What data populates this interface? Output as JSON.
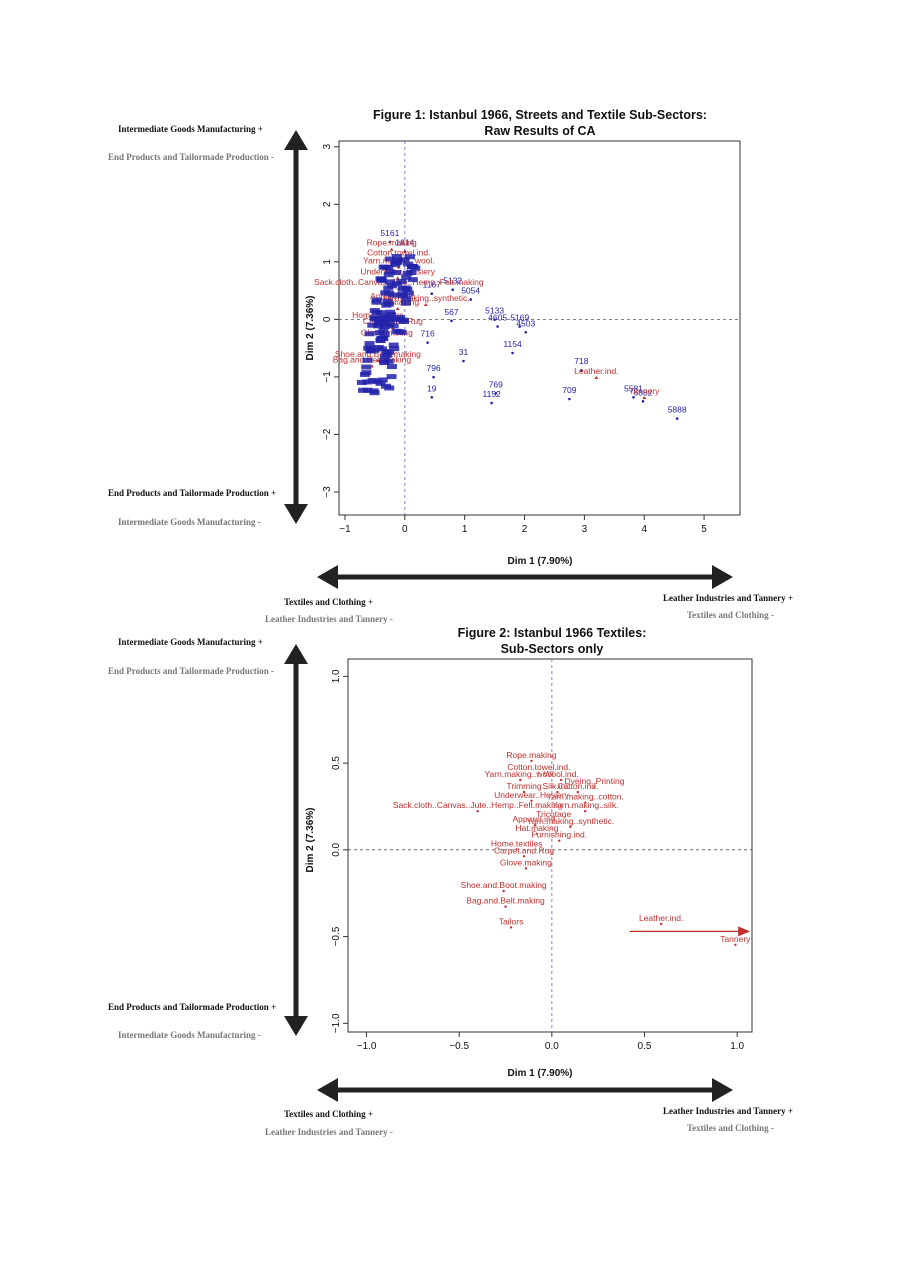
{
  "labels": {
    "intermediate": "Intermediate Goods Manufacturing",
    "end_products": "End Products and Tailormade Production",
    "textiles": "Textiles and Clothing",
    "leather": "Leather Industries and Tannery",
    "plus": "+",
    "minus": "-"
  },
  "colors": {
    "label_red": "#c0302f",
    "point_blue": "#2222aa",
    "axis_dash": "#7b6fc9",
    "arrow": "#222222",
    "label_grey": "#777777"
  },
  "chart_data": [
    {
      "type": "scatter",
      "title_lines": [
        "Figure 1: Istanbul 1966, Streets and Textile Sub-Sectors:",
        "Raw Results of CA"
      ],
      "xlabel": "Dim 1 (7.90%)",
      "ylabel": "Dim 2 (7.36%)",
      "xlim": [
        -1.1,
        5.6
      ],
      "ylim": [
        -3.4,
        3.1
      ],
      "xticks": [
        -1,
        0,
        1,
        2,
        3,
        4,
        5
      ],
      "yticks": [
        3,
        2,
        1,
        0,
        -1,
        -2,
        -3
      ],
      "xtick_labels": [
        "−1",
        "0",
        "1",
        "2",
        "3",
        "4",
        "5"
      ],
      "ytick_labels": [
        "3",
        "2",
        "1",
        "0",
        "−1",
        "−2",
        "−3"
      ],
      "street_points": [
        {
          "label": "5161",
          "x": -0.25,
          "y": 1.45
        },
        {
          "label": "1814",
          "x": 0.0,
          "y": 1.28
        },
        {
          "label": "1167",
          "x": 0.45,
          "y": 0.55
        },
        {
          "label": "5054",
          "x": 1.1,
          "y": 0.45
        },
        {
          "label": "5132",
          "x": 0.8,
          "y": 0.62
        },
        {
          "label": "567",
          "x": 0.78,
          "y": 0.08
        },
        {
          "label": "5133",
          "x": 1.5,
          "y": 0.1
        },
        {
          "label": "4605",
          "x": 1.55,
          "y": -0.02
        },
        {
          "label": "5169",
          "x": 1.92,
          "y": -0.02
        },
        {
          "label": "4503",
          "x": 2.02,
          "y": -0.12
        },
        {
          "label": "716",
          "x": 0.38,
          "y": -0.3
        },
        {
          "label": "1154",
          "x": 1.8,
          "y": -0.48
        },
        {
          "label": "31",
          "x": 0.98,
          "y": -0.62
        },
        {
          "label": "796",
          "x": 0.48,
          "y": -0.9
        },
        {
          "label": "769",
          "x": 1.52,
          "y": -1.18
        },
        {
          "label": "19",
          "x": 0.45,
          "y": -1.25
        },
        {
          "label": "1152",
          "x": 1.45,
          "y": -1.35
        },
        {
          "label": "718",
          "x": 2.95,
          "y": -0.78
        },
        {
          "label": "709",
          "x": 2.75,
          "y": -1.28
        },
        {
          "label": "5581",
          "x": 3.82,
          "y": -1.25
        },
        {
          "label": "5882",
          "x": 3.98,
          "y": -1.32
        },
        {
          "label": "5888",
          "x": 4.55,
          "y": -1.62
        }
      ],
      "sector_labels": [
        {
          "label": "Rope.making",
          "x": -0.22,
          "y": 1.28
        },
        {
          "label": "Cotton.towel.ind.",
          "x": -0.1,
          "y": 1.11
        },
        {
          "label": "Yarn.making..wool.",
          "x": -0.1,
          "y": 0.97
        },
        {
          "label": "Underwear..Hosiery",
          "x": -0.12,
          "y": 0.78
        },
        {
          "label": "Sack.cloth..Canvas..Jute..Hemp..Felt.making",
          "x": -0.1,
          "y": 0.6
        },
        {
          "label": "Yarn.making..synthetic.",
          "x": 0.35,
          "y": 0.32
        },
        {
          "label": "Apparel.ind.",
          "x": -0.2,
          "y": 0.35
        },
        {
          "label": "Hat.making",
          "x": -0.12,
          "y": 0.25
        },
        {
          "label": "Home.textiles",
          "x": -0.45,
          "y": 0.02
        },
        {
          "label": "Carpet.and.Rug",
          "x": -0.2,
          "y": -0.08
        },
        {
          "label": "Glove.making",
          "x": -0.3,
          "y": -0.28
        },
        {
          "label": "Shoe.and.Boot.making",
          "x": -0.45,
          "y": -0.65
        },
        {
          "label": "Bag.and.Belt.making",
          "x": -0.55,
          "y": -0.75
        },
        {
          "label": "Leather.ind.",
          "x": 3.2,
          "y": -0.95
        },
        {
          "label": "Tannery",
          "x": 4.0,
          "y": -1.3
        }
      ]
    },
    {
      "type": "scatter",
      "title_lines": [
        "Figure 2: Istanbul 1966 Textiles:",
        "Sub-Sectors only"
      ],
      "xlabel": "Dim 1 (7.90%)",
      "ylabel": "Dim 2 (7.36%)",
      "xlim": [
        -1.1,
        1.08
      ],
      "ylim": [
        -1.05,
        1.1
      ],
      "xticks": [
        -1.0,
        -0.5,
        0.0,
        0.5,
        1.0
      ],
      "yticks": [
        1.0,
        0.5,
        0.0,
        -0.5,
        -1.0
      ],
      "xtick_labels": [
        "−1.0",
        "−0.5",
        "0.0",
        "0.5",
        "1.0"
      ],
      "ytick_labels": [
        "1.0",
        "0.5",
        "0.0",
        "−0.5",
        "−1.0"
      ],
      "sector_points": [
        {
          "label": "Rope.making",
          "x": -0.11,
          "y": 0.53
        },
        {
          "label": "Cotton.towel.ind.",
          "x": -0.07,
          "y": 0.46
        },
        {
          "label": "Yarn.making..wool.",
          "x": -0.17,
          "y": 0.42
        },
        {
          "label": "Wool.ind.",
          "x": 0.05,
          "y": 0.42
        },
        {
          "label": "Dyeing..Printing",
          "x": 0.23,
          "y": 0.38
        },
        {
          "label": "Trimming",
          "x": -0.15,
          "y": 0.35
        },
        {
          "label": "Silk.ind.",
          "x": 0.03,
          "y": 0.35
        },
        {
          "label": "Cotton.ind.",
          "x": 0.14,
          "y": 0.35
        },
        {
          "label": "Underwear..Hosiery",
          "x": -0.11,
          "y": 0.3
        },
        {
          "label": "Yarn.making..cotton.",
          "x": 0.18,
          "y": 0.29
        },
        {
          "label": "Sack.cloth..Canvas..Jute..Hemp..Felt.making",
          "x": -0.4,
          "y": 0.24
        },
        {
          "label": "Yarn.making..silk.",
          "x": 0.18,
          "y": 0.24
        },
        {
          "label": "Tricotage",
          "x": 0.01,
          "y": 0.19
        },
        {
          "label": "Apparel.ind.",
          "x": -0.09,
          "y": 0.16
        },
        {
          "label": "Yarn.making..synthetic.",
          "x": 0.1,
          "y": 0.15
        },
        {
          "label": "Hat.making",
          "x": -0.08,
          "y": 0.11
        },
        {
          "label": "Furnishing.ind.",
          "x": 0.04,
          "y": 0.07
        },
        {
          "label": "Home.textiles",
          "x": -0.19,
          "y": 0.02
        },
        {
          "label": "Carpet.and.Rug",
          "x": -0.15,
          "y": -0.02
        },
        {
          "label": "Glove.making",
          "x": -0.14,
          "y": -0.09
        },
        {
          "label": "Shoe.and.Boot.making",
          "x": -0.26,
          "y": -0.22
        },
        {
          "label": "Bag.and.Belt.making",
          "x": -0.25,
          "y": -0.31
        },
        {
          "label": "Tailors",
          "x": -0.22,
          "y": -0.43
        },
        {
          "label": "Leather.ind.",
          "x": 0.59,
          "y": -0.41
        },
        {
          "label": "Tannery",
          "x": 0.99,
          "y": -0.53
        }
      ],
      "arrow": {
        "from": [
          0.42,
          -0.47
        ],
        "to": [
          1.07,
          -0.47
        ]
      }
    }
  ]
}
